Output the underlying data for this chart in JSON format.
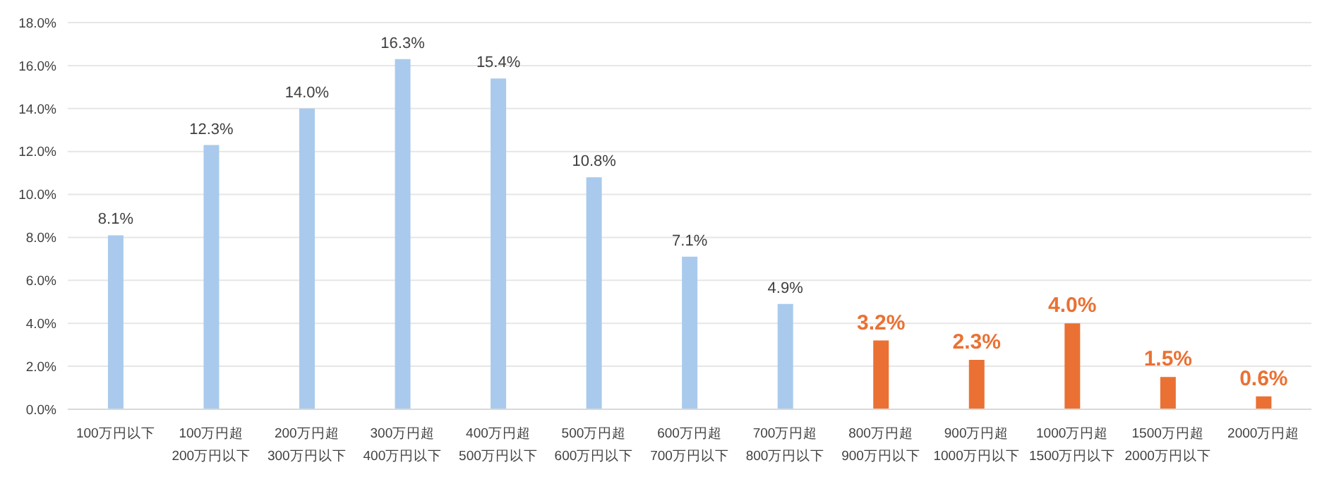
{
  "chart_data": {
    "type": "bar",
    "categories": [
      "100万円以下",
      "100万円超\n200万円以下",
      "200万円超\n300万円以下",
      "300万円超\n400万円以下",
      "400万円超\n500万円以下",
      "500万円超\n600万円以下",
      "600万円超\n700万円以下",
      "700万円超\n800万円以下",
      "800万円超\n900万円以下",
      "900万円超\n1000万円以下",
      "1000万円超\n1500万円以下",
      "1500万円超\n2000万円以下",
      "2000万円超"
    ],
    "values": [
      8.1,
      12.3,
      14.0,
      16.3,
      15.4,
      10.8,
      7.1,
      4.9,
      3.2,
      2.3,
      4.0,
      1.5,
      0.6
    ],
    "colors": [
      "#a9caec",
      "#a9caec",
      "#a9caec",
      "#a9caec",
      "#a9caec",
      "#a9caec",
      "#a9caec",
      "#a9caec",
      "#ea7133",
      "#ea7133",
      "#ea7133",
      "#ea7133",
      "#ea7133"
    ],
    "value_labels": [
      "8.1%",
      "12.3%",
      "14.0%",
      "16.3%",
      "15.4%",
      "10.8%",
      "7.1%",
      "4.9%",
      "3.2%",
      "2.3%",
      "4.0%",
      "1.5%",
      "0.6%"
    ],
    "ylim": [
      0,
      18
    ],
    "yticks": [
      {
        "value": 0,
        "label": "0.0%"
      },
      {
        "value": 2,
        "label": "2.0%"
      },
      {
        "value": 4,
        "label": "4.0%"
      },
      {
        "value": 6,
        "label": "6.0%"
      },
      {
        "value": 8,
        "label": "8.0%"
      },
      {
        "value": 10,
        "label": "10.0%"
      },
      {
        "value": 12,
        "label": "12.0%"
      },
      {
        "value": 14,
        "label": "14.0%"
      },
      {
        "value": 16,
        "label": "16.0%"
      },
      {
        "value": 18,
        "label": "18.0%"
      }
    ],
    "grid": "y",
    "legend": false
  }
}
